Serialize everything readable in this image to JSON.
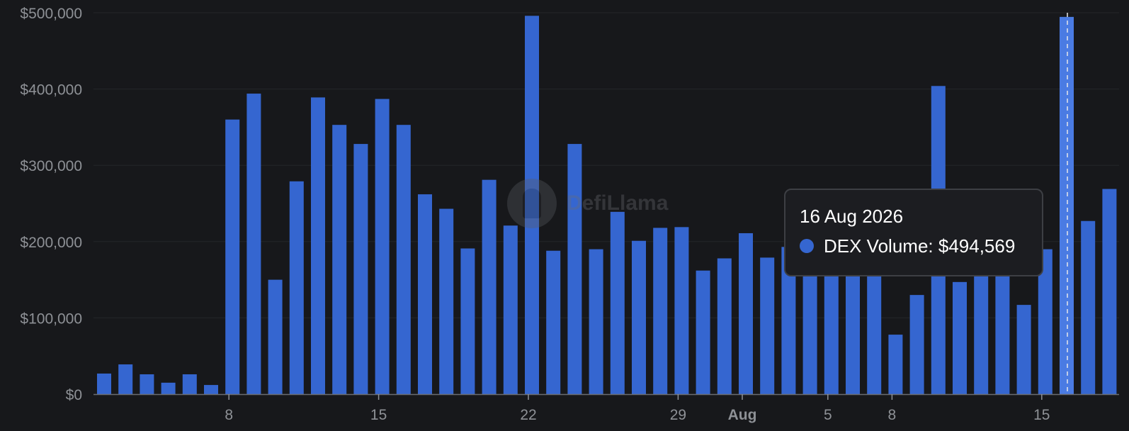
{
  "chart_data": {
    "type": "bar",
    "series": [
      {
        "name": "DEX Volume",
        "color": "#3566d0",
        "values": [
          27000,
          39000,
          26000,
          15000,
          26000,
          12000,
          360000,
          394000,
          150000,
          279000,
          389000,
          353000,
          328000,
          387000,
          353000,
          262000,
          243000,
          191000,
          281000,
          221000,
          496000,
          188000,
          328000,
          190000,
          239000,
          201000,
          218000,
          219000,
          162000,
          178000,
          211000,
          179000,
          193000,
          172000,
          170000,
          172000,
          177000,
          78000,
          130000,
          404000,
          147000,
          160000,
          160000,
          117000,
          190000,
          494569,
          227000,
          269000
        ]
      }
    ],
    "xticks": [
      {
        "index": 6,
        "label": "8"
      },
      {
        "index": 13,
        "label": "15"
      },
      {
        "index": 20,
        "label": "22"
      },
      {
        "index": 27,
        "label": "29"
      },
      {
        "index": 30,
        "label": "Aug",
        "bold": true
      },
      {
        "index": 34,
        "label": "5"
      },
      {
        "index": 37,
        "label": "8"
      },
      {
        "index": 44,
        "label": "15"
      }
    ],
    "yticks": [
      "$0",
      "$100,000",
      "$200,000",
      "$300,000",
      "$400,000",
      "$500,000"
    ],
    "ytick_values": [
      0,
      100000,
      200000,
      300000,
      400000,
      500000
    ],
    "ylim": [
      0,
      500000
    ],
    "grid": true,
    "highlight_index": 45,
    "accent_color": "#3566d0",
    "highlight_color": "#4a7be3"
  },
  "watermark": {
    "text": "DefiLlama"
  },
  "tooltip": {
    "date": "16 Aug 2026",
    "series_label": "DEX Volume: $494,569",
    "dot_color": "#3566d0"
  }
}
